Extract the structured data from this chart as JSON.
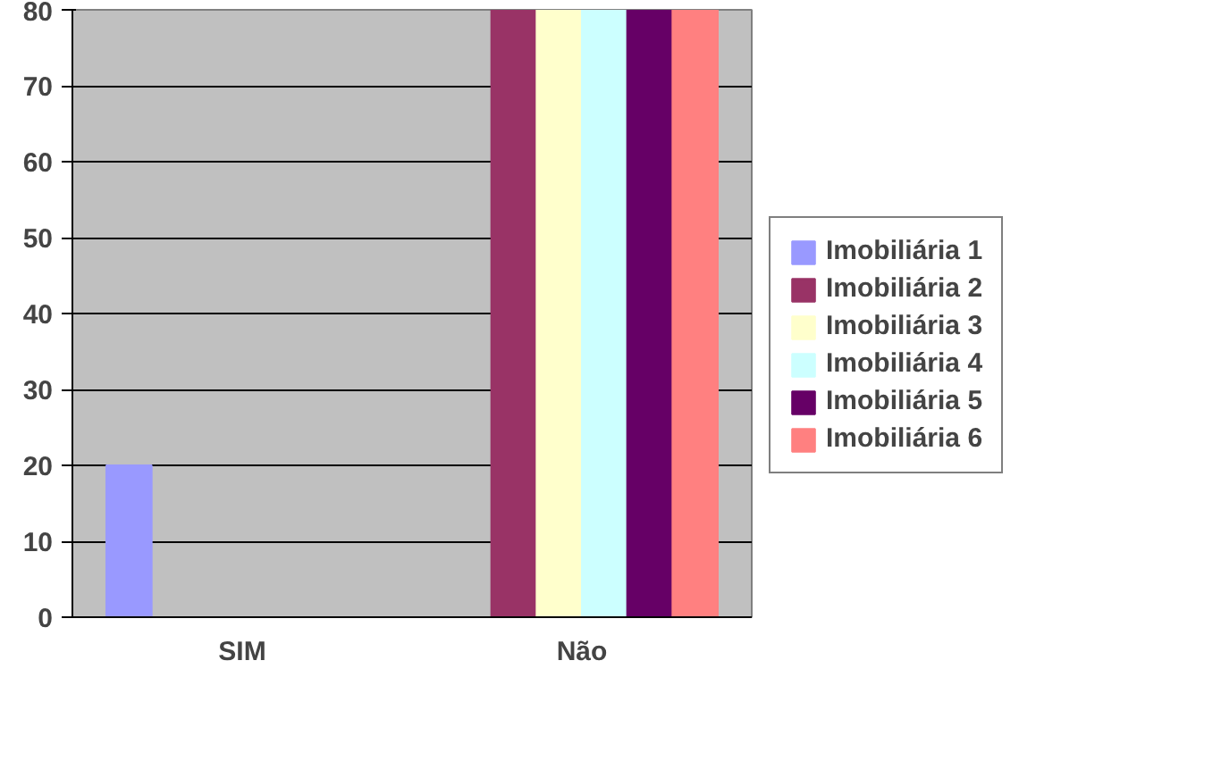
{
  "chart_data": {
    "type": "bar",
    "categories": [
      "SIM",
      "Não"
    ],
    "series": [
      {
        "name": "Imobiliária 1",
        "color": "#9999ff",
        "values": [
          20,
          0
        ]
      },
      {
        "name": "Imobiliária 2",
        "color": "#993366",
        "values": [
          0,
          80
        ]
      },
      {
        "name": "Imobiliária 3",
        "color": "#ffffcc",
        "values": [
          0,
          80
        ]
      },
      {
        "name": "Imobiliária 4",
        "color": "#ccffff",
        "values": [
          0,
          80
        ]
      },
      {
        "name": "Imobiliária 5",
        "color": "#660066",
        "values": [
          0,
          80
        ]
      },
      {
        "name": "Imobiliária 6",
        "color": "#ff8080",
        "values": [
          0,
          80
        ]
      }
    ],
    "ylim": [
      0,
      80
    ],
    "yticks": [
      0,
      10,
      20,
      30,
      40,
      50,
      60,
      70,
      80
    ],
    "grid": "y",
    "legend": "right"
  }
}
